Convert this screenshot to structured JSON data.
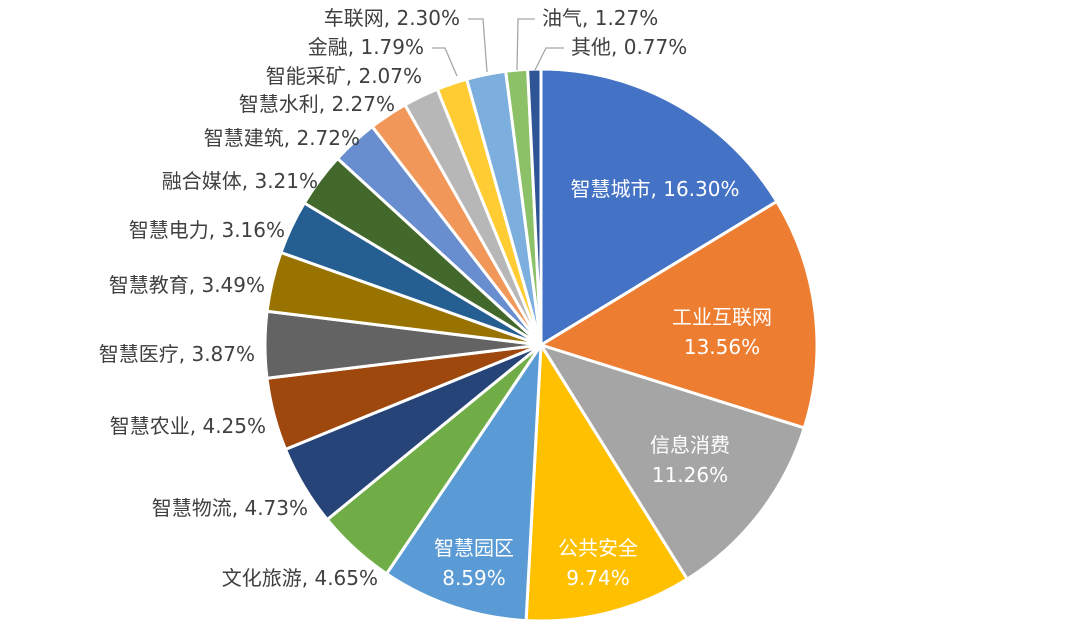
{
  "chart_data": {
    "type": "pie",
    "title": "",
    "slices": [
      {
        "name": "智慧城市",
        "value": 16.3,
        "label": "16.30%",
        "color": "#4472C4"
      },
      {
        "name": "工业互联网",
        "value": 13.56,
        "label": "13.56%",
        "color": "#ED7D31"
      },
      {
        "name": "信息消费",
        "value": 11.26,
        "label": "11.26%",
        "color": "#A5A5A5"
      },
      {
        "name": "公共安全",
        "value": 9.74,
        "label": "9.74%",
        "color": "#FFC000"
      },
      {
        "name": "智慧园区",
        "value": 8.59,
        "label": "8.59%",
        "color": "#5B9BD5"
      },
      {
        "name": "文化旅游",
        "value": 4.65,
        "label": "4.65%",
        "color": "#70AD47"
      },
      {
        "name": "智慧物流",
        "value": 4.73,
        "label": "4.73%",
        "color": "#264478"
      },
      {
        "name": "智慧农业",
        "value": 4.25,
        "label": "4.25%",
        "color": "#9E480E"
      },
      {
        "name": "智慧医疗",
        "value": 3.87,
        "label": "3.87%",
        "color": "#636363"
      },
      {
        "name": "智慧教育",
        "value": 3.49,
        "label": "3.49%",
        "color": "#997300"
      },
      {
        "name": "智慧电力",
        "value": 3.16,
        "label": "3.16%",
        "color": "#255E91"
      },
      {
        "name": "融合媒体",
        "value": 3.21,
        "label": "3.21%",
        "color": "#43682B"
      },
      {
        "name": "智慧建筑",
        "value": 2.72,
        "label": "2.72%",
        "color": "#698ED0"
      },
      {
        "name": "智慧水利",
        "value": 2.27,
        "label": "2.27%",
        "color": "#F1975A"
      },
      {
        "name": "智能采矿",
        "value": 2.07,
        "label": "2.07%",
        "color": "#B7B7B7"
      },
      {
        "name": "金融",
        "value": 1.79,
        "label": "1.79%",
        "color": "#FFCD33"
      },
      {
        "name": "车联网",
        "value": 2.3,
        "label": "2.30%",
        "color": "#7CAFDD"
      },
      {
        "name": "油气",
        "value": 1.27,
        "label": "1.27%",
        "color": "#8CC168"
      },
      {
        "name": "其他",
        "value": 0.77,
        "label": "0.77%",
        "color": "#2F5597"
      }
    ]
  }
}
